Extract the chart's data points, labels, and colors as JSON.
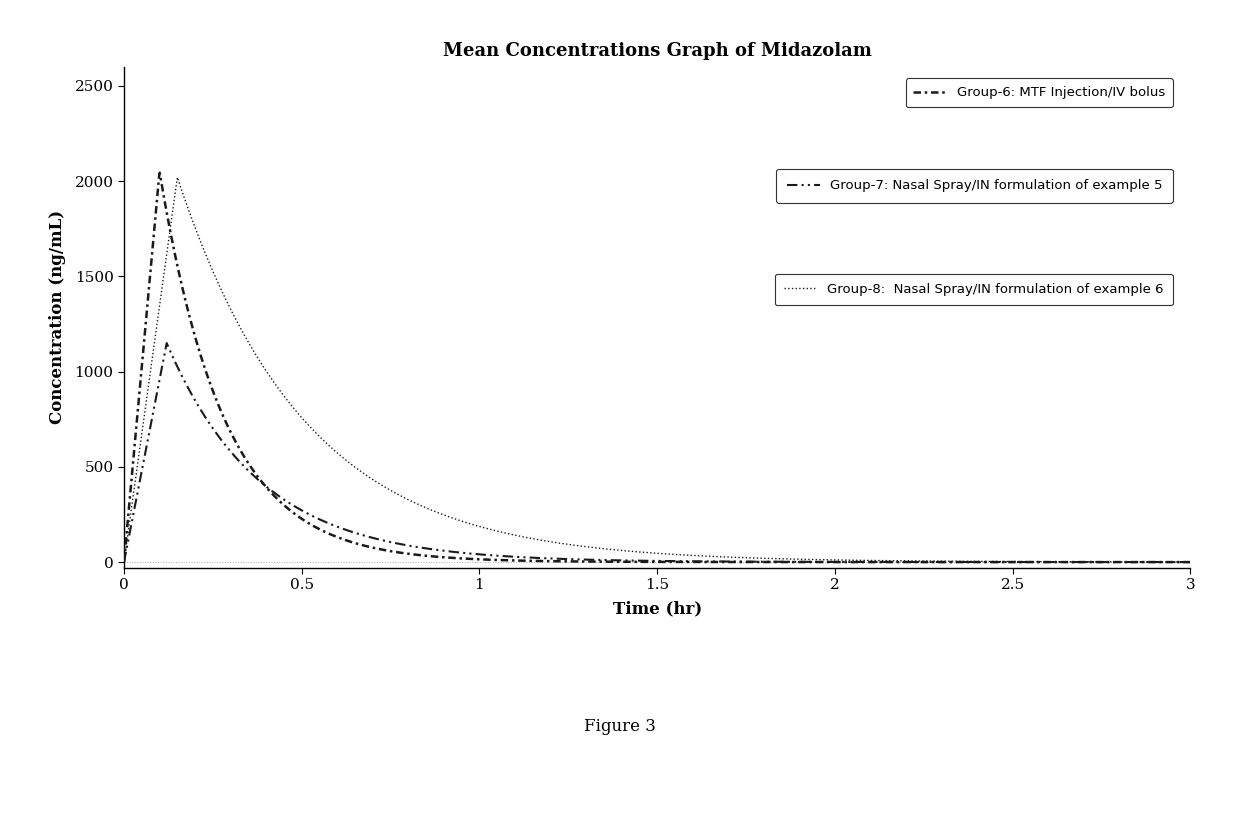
{
  "title": "Mean Concentrations Graph of Midazolam",
  "xlabel": "Time (hr)",
  "ylabel": "Concentration (ng/mL)",
  "figure_caption": "Figure 3",
  "xlim": [
    0,
    3
  ],
  "ylim": [
    -30,
    2600
  ],
  "yticks": [
    0,
    500,
    1000,
    1500,
    2000,
    2500
  ],
  "xticks": [
    0,
    0.5,
    1,
    1.5,
    2,
    2.5,
    3
  ],
  "group6_label": "Group-6: MTF Injection/IV bolus",
  "group7_label": "Group-7: Nasal Spray/IN formulation of example 5",
  "group8_label": "Group-8:  Nasal Spray/IN formulation of example 6",
  "line_color": "#1a1a1a",
  "background_color": "#ffffff",
  "title_fontsize": 13,
  "axis_label_fontsize": 12,
  "tick_fontsize": 11,
  "caption_fontsize": 12,
  "group6_cmax": 2050,
  "group6_tmax": 0.1,
  "group6_ke": 5.5,
  "group7_cmax": 1150,
  "group7_tmax": 0.12,
  "group7_ke": 3.8,
  "group8_cmax": 2020,
  "group8_tmax": 0.15,
  "group8_ke": 2.8
}
